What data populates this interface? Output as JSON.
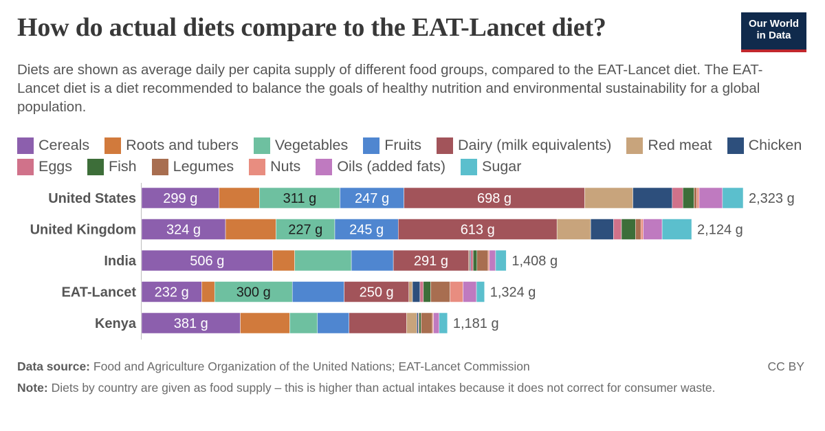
{
  "header": {
    "title": "How do actual diets compare to the EAT-Lancet diet?",
    "subtitle": "Diets are shown as average daily per capita supply of different food groups, compared to the EAT-Lancet diet. The EAT-Lancet diet is a diet recommended to balance the goals of healthy nutrition and environmental sustainability for a global population.",
    "logo_line1": "Our World",
    "logo_line2": "in Data"
  },
  "footer": {
    "source_label": "Data source:",
    "source_text": "Food and Agriculture Organization of the United Nations; EAT-Lancet Commission",
    "note_label": "Note:",
    "note_text": "Diets by country are given as food supply – this is higher than actual intakes because it does not correct for consumer waste.",
    "license": "CC BY"
  },
  "colors": {
    "background": "#ffffff",
    "logo_bg": "#102a4c",
    "logo_accent": "#c1272d"
  },
  "chart_data": {
    "type": "bar",
    "orientation": "horizontal",
    "stacked": true,
    "unit": "g",
    "categories": [
      "United States",
      "United Kingdom",
      "India",
      "EAT-Lancet",
      "Kenya"
    ],
    "totals": [
      "2,323 g",
      "2,124 g",
      "1,408 g",
      "1,324 g",
      "1,181 g"
    ],
    "series": [
      {
        "name": "Cereals",
        "color": "#8c5fad",
        "values": [
          299,
          324,
          506,
          232,
          381
        ]
      },
      {
        "name": "Roots and tubers",
        "color": "#d17a3c",
        "values": [
          156,
          195,
          85,
          50,
          191
        ]
      },
      {
        "name": "Vegetables",
        "color": "#6ec0a0",
        "values": [
          311,
          227,
          219,
          300,
          107
        ]
      },
      {
        "name": "Fruits",
        "color": "#4f86d0",
        "values": [
          247,
          245,
          162,
          200,
          122
        ]
      },
      {
        "name": "Dairy (milk equivalents)",
        "color": "#a2545a",
        "values": [
          698,
          613,
          291,
          250,
          222
        ]
      },
      {
        "name": "Red meat",
        "color": "#c8a47c",
        "values": [
          186,
          130,
          4,
          14,
          40
        ]
      },
      {
        "name": "Chicken",
        "color": "#2d4f7c",
        "values": [
          152,
          88,
          4,
          29,
          5
        ]
      },
      {
        "name": "Eggs",
        "color": "#d0728a",
        "values": [
          41,
          31,
          9,
          13,
          3
        ]
      },
      {
        "name": "Fish",
        "color": "#3d6e39",
        "values": [
          43,
          54,
          15,
          28,
          8
        ]
      },
      {
        "name": "Legumes",
        "color": "#a86e50",
        "values": [
          11,
          21,
          43,
          75,
          44
        ]
      },
      {
        "name": "Nuts",
        "color": "#e88d80",
        "values": [
          9,
          9,
          5,
          50,
          4
        ]
      },
      {
        "name": "Oils (added fats)",
        "color": "#bf7ac0",
        "values": [
          90,
          73,
          24,
          52,
          22
        ]
      },
      {
        "name": "Sugar",
        "color": "#5bbfcd",
        "values": [
          80,
          114,
          41,
          31,
          32
        ]
      }
    ],
    "xlim": [
      0,
      2323
    ],
    "grid": false,
    "legend_position": "top"
  }
}
